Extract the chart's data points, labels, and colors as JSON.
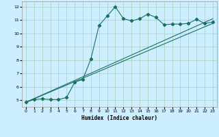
{
  "xlabel": "Humidex (Indice chaleur)",
  "bg_color": "#cceeff",
  "grid_color": "#aaccbb",
  "line_color": "#1a7060",
  "xlim": [
    -0.5,
    23.5
  ],
  "ylim": [
    4.5,
    12.4
  ],
  "xticks": [
    0,
    1,
    2,
    3,
    4,
    5,
    6,
    7,
    8,
    9,
    10,
    11,
    12,
    13,
    14,
    15,
    16,
    17,
    18,
    19,
    20,
    21,
    22,
    23
  ],
  "yticks": [
    5,
    6,
    7,
    8,
    9,
    10,
    11,
    12
  ],
  "series1_x": [
    0,
    1,
    2,
    3,
    4,
    5,
    6,
    7,
    8,
    9,
    10,
    11,
    12,
    13,
    14,
    15,
    16,
    17,
    18,
    19,
    20,
    21,
    22,
    23
  ],
  "series1_y": [
    4.85,
    5.05,
    5.1,
    5.05,
    5.05,
    5.2,
    6.35,
    6.55,
    8.1,
    10.6,
    11.3,
    12.0,
    11.1,
    10.95,
    11.1,
    11.45,
    11.2,
    10.65,
    10.7,
    10.7,
    10.75,
    11.05,
    10.75,
    10.85
  ],
  "series2_x": [
    0,
    23
  ],
  "series2_y": [
    4.85,
    11.1
  ],
  "series3_x": [
    0,
    23
  ],
  "series3_y": [
    4.85,
    10.75
  ]
}
